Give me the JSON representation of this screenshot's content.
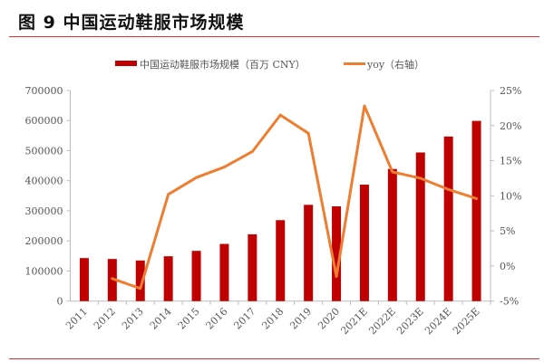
{
  "title": "图 9  中国运动鞋服市场规模",
  "chart_data": {
    "type": "bar+line",
    "categories": [
      "2011",
      "2012",
      "2013",
      "2014",
      "2015",
      "2016",
      "2017",
      "2018",
      "2019",
      "2020",
      "2021E",
      "2022E",
      "2023E",
      "2024E",
      "2025E"
    ],
    "series": [
      {
        "name": "中国运动鞋服市场规模（百万 CNY）",
        "type": "bar",
        "axis": "left",
        "color": "#c00000",
        "values": [
          143000,
          140000,
          135000,
          149000,
          167000,
          190000,
          222000,
          269000,
          320000,
          315000,
          387000,
          439000,
          494000,
          547000,
          599000
        ]
      },
      {
        "name": "yoy（右轴）",
        "type": "line",
        "axis": "right",
        "color": "#ed7d31",
        "values": [
          null,
          -1.8,
          -3.2,
          10.2,
          12.6,
          14.1,
          16.3,
          21.5,
          18.9,
          -1.5,
          22.8,
          13.4,
          12.5,
          10.9,
          9.6
        ]
      }
    ],
    "left_axis": {
      "ylim": [
        0,
        700000
      ],
      "ticks": [
        "0",
        "100000",
        "200000",
        "300000",
        "400000",
        "500000",
        "600000",
        "700000"
      ]
    },
    "right_axis": {
      "ylim": [
        -5,
        25
      ],
      "unit": "%",
      "ticks": [
        "-5%",
        "0%",
        "5%",
        "10%",
        "15%",
        "20%",
        "25%"
      ]
    },
    "legend_position": "top",
    "grid": false
  }
}
